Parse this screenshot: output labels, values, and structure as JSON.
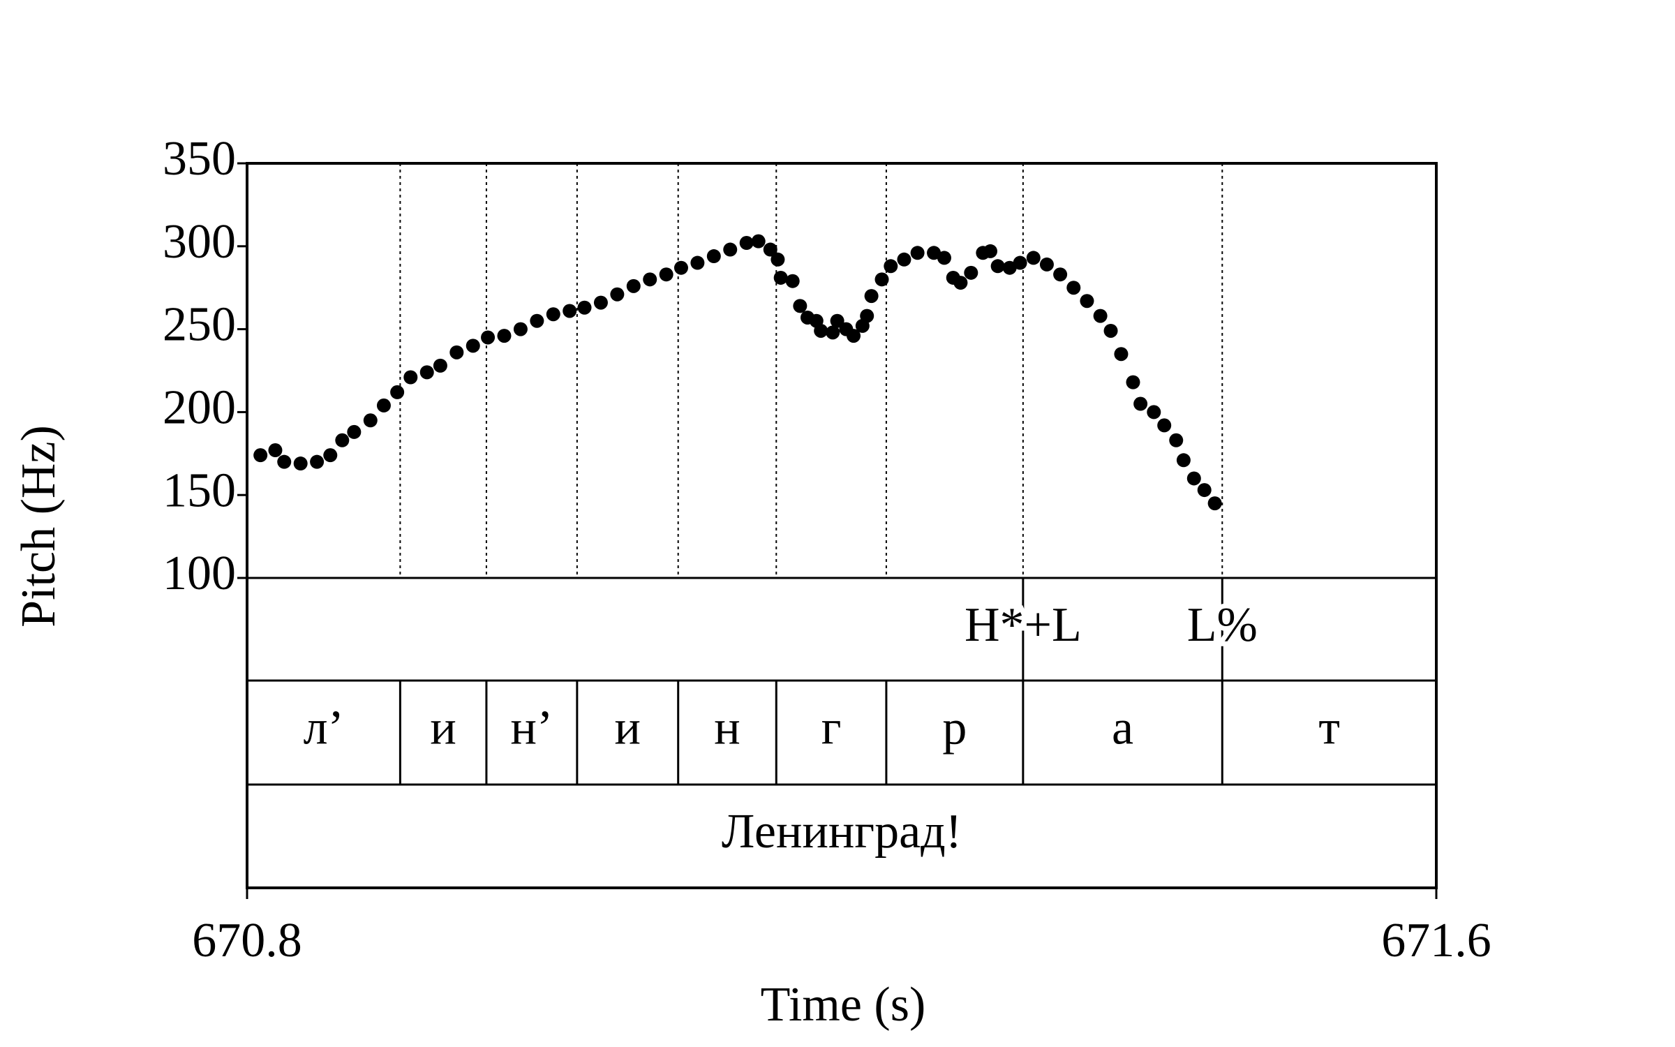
{
  "chart_data": {
    "type": "scatter",
    "xlabel": "Time (s)",
    "ylabel": "Pitch (Hz)",
    "xlim": [
      670.8,
      671.6
    ],
    "xticks": [
      670.8,
      671.6
    ],
    "ylim": [
      100,
      350
    ],
    "yticks": [
      100,
      150,
      200,
      250,
      300,
      350
    ],
    "color": "#000000",
    "x": [
      670.809,
      670.819,
      670.825,
      670.836,
      670.847,
      670.856,
      670.864,
      670.872,
      670.883,
      670.892,
      670.901,
      670.91,
      670.921,
      670.93,
      670.941,
      670.952,
      670.962,
      670.973,
      670.984,
      670.995,
      671.006,
      671.017,
      671.027,
      671.038,
      671.049,
      671.06,
      671.071,
      671.082,
      671.092,
      671.103,
      671.114,
      671.125,
      671.136,
      671.144,
      671.152,
      671.157,
      671.159,
      671.167,
      671.172,
      671.177,
      671.183,
      671.186,
      671.194,
      671.197,
      671.203,
      671.208,
      671.214,
      671.217,
      671.22,
      671.227,
      671.233,
      671.242,
      671.251,
      671.262,
      671.269,
      671.275,
      671.28,
      671.287,
      671.295,
      671.3,
      671.305,
      671.313,
      671.32,
      671.329,
      671.338,
      671.347,
      671.356,
      671.365,
      671.374,
      671.381,
      671.388,
      671.396,
      671.401,
      671.41,
      671.417,
      671.425,
      671.43,
      671.437,
      671.444,
      671.451
    ],
    "values": [
      174,
      177,
      170,
      169,
      170,
      174,
      183,
      188,
      195,
      204,
      212,
      221,
      224,
      228,
      236,
      240,
      245,
      246,
      250,
      255,
      259,
      261,
      263,
      266,
      271,
      276,
      280,
      283,
      287,
      290,
      294,
      298,
      302,
      303,
      298,
      292,
      281,
      279,
      264,
      257,
      255,
      249,
      248,
      255,
      250,
      246,
      252,
      258,
      270,
      280,
      288,
      292,
      296,
      296,
      293,
      281,
      278,
      284,
      296,
      297,
      288,
      287,
      290,
      293,
      289,
      283,
      275,
      267,
      258,
      249,
      235,
      218,
      205,
      200,
      192,
      183,
      171,
      160,
      153,
      145
    ],
    "boundaries": [
      670.903,
      670.961,
      671.022,
      671.09,
      671.156,
      671.23,
      671.322,
      671.456
    ],
    "segments": [
      "л’",
      "и",
      "н’",
      "и",
      "н",
      "г",
      "р",
      "а",
      "т"
    ],
    "tones": [
      {
        "label": "H*+L",
        "time": 671.322
      },
      {
        "label": "L%",
        "time": 671.456
      }
    ],
    "word": "Ленинград!"
  }
}
